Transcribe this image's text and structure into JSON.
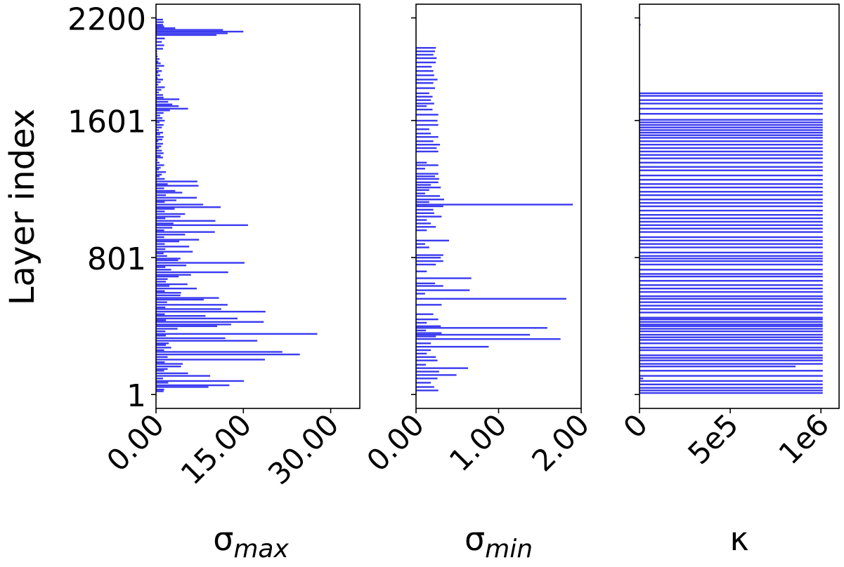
{
  "chart_data": [
    {
      "type": "bar",
      "orientation": "horizontal",
      "ylabel": "Layer index",
      "xlabel": "σ",
      "xlabel_subscript": "max",
      "xlim": [
        0,
        35
      ],
      "ylim": [
        -80,
        2280
      ],
      "xticks": [
        0,
        15,
        30
      ],
      "xtick_labels": [
        "0.00",
        "15.00",
        "30.00"
      ],
      "yticks": [
        1,
        801,
        1601,
        2200
      ],
      "ytick_labels": [
        "1",
        "801",
        "1601",
        "2200"
      ],
      "color": "#3a3af0",
      "values": [
        [
          20,
          1.3
        ],
        [
          30,
          1.4
        ],
        [
          45,
          9.0
        ],
        [
          55,
          12.6
        ],
        [
          70,
          2.1
        ],
        [
          80,
          15.1
        ],
        [
          95,
          1.2
        ],
        [
          110,
          9.3
        ],
        [
          125,
          5.5
        ],
        [
          140,
          1.4
        ],
        [
          150,
          2.0
        ],
        [
          165,
          4.3
        ],
        [
          180,
          4.6
        ],
        [
          190,
          1.5
        ],
        [
          205,
          18.7
        ],
        [
          220,
          2.0
        ],
        [
          235,
          24.7
        ],
        [
          250,
          21.7
        ],
        [
          260,
          1.4
        ],
        [
          275,
          2.6
        ],
        [
          290,
          1.7
        ],
        [
          300,
          2.2
        ],
        [
          315,
          17.4
        ],
        [
          330,
          11.9
        ],
        [
          345,
          1.7
        ],
        [
          355,
          27.7
        ],
        [
          370,
          1.6
        ],
        [
          385,
          3.7
        ],
        [
          400,
          10.5
        ],
        [
          410,
          12.9
        ],
        [
          425,
          18.5
        ],
        [
          435,
          1.7
        ],
        [
          445,
          14.0
        ],
        [
          460,
          8.5
        ],
        [
          470,
          1.5
        ],
        [
          485,
          18.8
        ],
        [
          500,
          11.2
        ],
        [
          510,
          1.6
        ],
        [
          525,
          12.3
        ],
        [
          540,
          1.9
        ],
        [
          555,
          8.2
        ],
        [
          565,
          10.8
        ],
        [
          580,
          4.2
        ],
        [
          595,
          4.3
        ],
        [
          605,
          1.5
        ],
        [
          620,
          7.0
        ],
        [
          635,
          2.3
        ],
        [
          645,
          5.4
        ],
        [
          660,
          1.7
        ],
        [
          675,
          2.0
        ],
        [
          690,
          3.9
        ],
        [
          700,
          6.0
        ],
        [
          715,
          12.4
        ],
        [
          730,
          2.6
        ],
        [
          745,
          1.6
        ],
        [
          755,
          5.2
        ],
        [
          770,
          15.2
        ],
        [
          785,
          3.8
        ],
        [
          795,
          4.2
        ],
        [
          810,
          1.9
        ],
        [
          825,
          1.3
        ],
        [
          835,
          6.3
        ],
        [
          850,
          1.6
        ],
        [
          865,
          5.7
        ],
        [
          880,
          1.5
        ],
        [
          895,
          4.0
        ],
        [
          905,
          7.4
        ],
        [
          920,
          1.4
        ],
        [
          935,
          5.0
        ],
        [
          950,
          10.1
        ],
        [
          960,
          1.4
        ],
        [
          975,
          2.8
        ],
        [
          990,
          15.8
        ],
        [
          1000,
          3.0
        ],
        [
          1015,
          10.2
        ],
        [
          1030,
          1.6
        ],
        [
          1040,
          4.2
        ],
        [
          1055,
          5.0
        ],
        [
          1070,
          1.5
        ],
        [
          1085,
          3.2
        ],
        [
          1095,
          11.1
        ],
        [
          1110,
          8.1
        ],
        [
          1125,
          1.5
        ],
        [
          1135,
          3.5
        ],
        [
          1150,
          7.0
        ],
        [
          1165,
          1.7
        ],
        [
          1180,
          4.5
        ],
        [
          1190,
          3.3
        ],
        [
          1205,
          1.4
        ],
        [
          1220,
          7.3
        ],
        [
          1230,
          2.0
        ],
        [
          1245,
          7.1
        ],
        [
          1260,
          1.5
        ],
        [
          1275,
          0.6
        ],
        [
          1285,
          1.0
        ],
        [
          1300,
          1.7
        ],
        [
          1315,
          0.5
        ],
        [
          1325,
          0.8
        ],
        [
          1340,
          1.4
        ],
        [
          1355,
          0.6
        ],
        [
          1370,
          0.3
        ],
        [
          1385,
          1.2
        ],
        [
          1395,
          0.8
        ],
        [
          1410,
          1.3
        ],
        [
          1425,
          1.0
        ],
        [
          1440,
          0.5
        ],
        [
          1450,
          0.9
        ],
        [
          1465,
          1.2
        ],
        [
          1480,
          0.4
        ],
        [
          1490,
          1.1
        ],
        [
          1505,
          1.3
        ],
        [
          1520,
          0.7
        ],
        [
          1530,
          1.2
        ],
        [
          1545,
          0.5
        ],
        [
          1560,
          1.0
        ],
        [
          1575,
          1.3
        ],
        [
          1590,
          0.6
        ],
        [
          1600,
          1.5
        ],
        [
          1615,
          1.1
        ],
        [
          1630,
          0.7
        ],
        [
          1645,
          1.3
        ],
        [
          1660,
          2.4
        ],
        [
          1670,
          5.5
        ],
        [
          1685,
          3.9
        ],
        [
          1695,
          2.8
        ],
        [
          1710,
          2.1
        ],
        [
          1725,
          4.0
        ],
        [
          1735,
          1.3
        ],
        [
          1750,
          1.2
        ],
        [
          1765,
          0.5
        ],
        [
          1780,
          0.9
        ],
        [
          1795,
          1.5
        ],
        [
          1810,
          0.4
        ],
        [
          1825,
          0.8
        ],
        [
          1840,
          1.2
        ],
        [
          1850,
          0.3
        ],
        [
          1865,
          0.7
        ],
        [
          1880,
          0.4
        ],
        [
          1890,
          1.0
        ],
        [
          1905,
          0.5
        ],
        [
          1920,
          1.4
        ],
        [
          1935,
          0.8
        ],
        [
          1945,
          0.4
        ],
        [
          1960,
          0.6
        ],
        [
          1975,
          0.3
        ],
        [
          1990,
          0.2
        ],
        [
          2005,
          0.2
        ],
        [
          2020,
          1.2
        ],
        [
          2040,
          1.4
        ],
        [
          2060,
          1.0
        ],
        [
          2080,
          1.5
        ],
        [
          2100,
          10.4
        ],
        [
          2110,
          12.3
        ],
        [
          2120,
          15.0
        ],
        [
          2130,
          11.5
        ],
        [
          2140,
          3.3
        ],
        [
          2150,
          1.4
        ],
        [
          2160,
          1.2
        ],
        [
          2175,
          1.3
        ],
        [
          2190,
          1.2
        ]
      ]
    },
    {
      "type": "bar",
      "orientation": "horizontal",
      "xlabel": "σ",
      "xlabel_subscript": "min",
      "xlim": [
        0,
        2.0
      ],
      "ylim": [
        -80,
        2280
      ],
      "xticks": [
        0,
        1,
        2
      ],
      "xtick_labels": [
        "0.00",
        "1.00",
        "2.00"
      ],
      "color": "#3a3af0",
      "values": [
        [
          25,
          0.27
        ],
        [
          45,
          0.22
        ],
        [
          70,
          0.18
        ],
        [
          95,
          0.26
        ],
        [
          115,
          0.49
        ],
        [
          135,
          0.28
        ],
        [
          155,
          0.63
        ],
        [
          175,
          0.12
        ],
        [
          200,
          0.26
        ],
        [
          220,
          0.24
        ],
        [
          240,
          0.13
        ],
        [
          260,
          0.18
        ],
        [
          280,
          0.88
        ],
        [
          300,
          0.18
        ],
        [
          325,
          1.75
        ],
        [
          340,
          0.24
        ],
        [
          350,
          1.38
        ],
        [
          360,
          0.31
        ],
        [
          375,
          0.12
        ],
        [
          390,
          1.59
        ],
        [
          400,
          0.3
        ],
        [
          420,
          0.13
        ],
        [
          440,
          0.27
        ],
        [
          470,
          0.21
        ],
        [
          525,
          0.31
        ],
        [
          560,
          1.82
        ],
        [
          590,
          0.11
        ],
        [
          610,
          0.65
        ],
        [
          635,
          0.33
        ],
        [
          650,
          0.23
        ],
        [
          680,
          0.67
        ],
        [
          720,
          0.13
        ],
        [
          760,
          0.24
        ],
        [
          780,
          0.33
        ],
        [
          800,
          0.3
        ],
        [
          815,
          0.33
        ],
        [
          860,
          0.16
        ],
        [
          880,
          0.11
        ],
        [
          900,
          0.4
        ],
        [
          960,
          0.13
        ],
        [
          980,
          0.24
        ],
        [
          1000,
          0.18
        ],
        [
          1020,
          0.13
        ],
        [
          1040,
          0.31
        ],
        [
          1060,
          0.22
        ],
        [
          1080,
          0.21
        ],
        [
          1100,
          0.33
        ],
        [
          1110,
          1.9
        ],
        [
          1125,
          0.16
        ],
        [
          1140,
          0.34
        ],
        [
          1160,
          0.29
        ],
        [
          1175,
          0.11
        ],
        [
          1195,
          0.16
        ],
        [
          1210,
          0.3
        ],
        [
          1225,
          0.18
        ],
        [
          1240,
          0.27
        ],
        [
          1260,
          0.28
        ],
        [
          1275,
          0.23
        ],
        [
          1290,
          0.27
        ],
        [
          1320,
          0.11
        ],
        [
          1340,
          0.27
        ],
        [
          1355,
          0.13
        ],
        [
          1420,
          0.27
        ],
        [
          1440,
          0.25
        ],
        [
          1460,
          0.29
        ],
        [
          1480,
          0.21
        ],
        [
          1505,
          0.27
        ],
        [
          1525,
          0.18
        ],
        [
          1550,
          0.16
        ],
        [
          1575,
          0.27
        ],
        [
          1600,
          0.26
        ],
        [
          1635,
          0.27
        ],
        [
          1665,
          0.2
        ],
        [
          1685,
          0.13
        ],
        [
          1700,
          0.22
        ],
        [
          1720,
          0.18
        ],
        [
          1740,
          0.2
        ],
        [
          1760,
          0.16
        ],
        [
          1790,
          0.23
        ],
        [
          1820,
          0.21
        ],
        [
          1840,
          0.26
        ],
        [
          1865,
          0.22
        ],
        [
          1890,
          0.21
        ],
        [
          1915,
          0.19
        ],
        [
          1940,
          0.24
        ],
        [
          1965,
          0.25
        ],
        [
          1985,
          0.21
        ],
        [
          2005,
          0.23
        ],
        [
          2025,
          0.24
        ]
      ]
    },
    {
      "type": "bar",
      "orientation": "horizontal",
      "xlabel": "κ",
      "xlim": [
        0,
        1100000
      ],
      "ylim": [
        -80,
        2280
      ],
      "xticks": [
        0,
        500000,
        1000000
      ],
      "xtick_labels": [
        "0",
        "5e5",
        "1e6"
      ],
      "color": "#3a3af0",
      "values": [
        [
          10,
          1010000
        ],
        [
          25,
          1010000
        ],
        [
          40,
          1010000
        ],
        [
          60,
          1010000
        ],
        [
          80,
          1010000
        ],
        [
          95,
          20000
        ],
        [
          110,
          1010000
        ],
        [
          140,
          1010000
        ],
        [
          165,
          860000
        ],
        [
          180,
          1010000
        ],
        [
          200,
          1010000
        ],
        [
          215,
          1010000
        ],
        [
          230,
          1010000
        ],
        [
          260,
          1010000
        ],
        [
          275,
          1010000
        ],
        [
          300,
          1010000
        ],
        [
          320,
          1010000
        ],
        [
          335,
          1010000
        ],
        [
          350,
          1010000
        ],
        [
          370,
          1010000
        ],
        [
          385,
          1010000
        ],
        [
          400,
          1010000
        ],
        [
          410,
          1010000
        ],
        [
          425,
          1010000
        ],
        [
          440,
          1010000
        ],
        [
          450,
          1010000
        ],
        [
          480,
          1010000
        ],
        [
          500,
          1010000
        ],
        [
          520,
          1010000
        ],
        [
          540,
          1010000
        ],
        [
          560,
          1010000
        ],
        [
          575,
          1010000
        ],
        [
          600,
          1010000
        ],
        [
          620,
          1010000
        ],
        [
          640,
          1010000
        ],
        [
          665,
          1010000
        ],
        [
          690,
          1010000
        ],
        [
          705,
          1010000
        ],
        [
          730,
          1010000
        ],
        [
          760,
          1010000
        ],
        [
          780,
          1010000
        ],
        [
          795,
          1010000
        ],
        [
          810,
          1010000
        ],
        [
          830,
          1010000
        ],
        [
          860,
          1010000
        ],
        [
          880,
          1010000
        ],
        [
          900,
          1010000
        ],
        [
          920,
          1010000
        ],
        [
          950,
          1010000
        ],
        [
          970,
          1010000
        ],
        [
          990,
          1010000
        ],
        [
          1010,
          1010000
        ],
        [
          1030,
          1010000
        ],
        [
          1050,
          1010000
        ],
        [
          1075,
          1010000
        ],
        [
          1100,
          1010000
        ],
        [
          1120,
          1010000
        ],
        [
          1140,
          1010000
        ],
        [
          1165,
          1010000
        ],
        [
          1185,
          1010000
        ],
        [
          1210,
          1010000
        ],
        [
          1230,
          1010000
        ],
        [
          1255,
          1010000
        ],
        [
          1280,
          1010000
        ],
        [
          1310,
          1010000
        ],
        [
          1330,
          1010000
        ],
        [
          1355,
          1010000
        ],
        [
          1380,
          1010000
        ],
        [
          1400,
          1010000
        ],
        [
          1420,
          1010000
        ],
        [
          1440,
          1010000
        ],
        [
          1460,
          1010000
        ],
        [
          1480,
          1010000
        ],
        [
          1500,
          1010000
        ],
        [
          1515,
          1010000
        ],
        [
          1530,
          1010000
        ],
        [
          1545,
          1010000
        ],
        [
          1560,
          1010000
        ],
        [
          1575,
          1010000
        ],
        [
          1590,
          1010000
        ],
        [
          1605,
          1010000
        ],
        [
          1640,
          1010000
        ],
        [
          1670,
          1010000
        ],
        [
          1700,
          1010000
        ],
        [
          1720,
          1010000
        ],
        [
          1745,
          1010000
        ],
        [
          1760,
          1010000
        ],
        [
          2160,
          6000
        ],
        [
          2200,
          4000
        ]
      ]
    }
  ]
}
